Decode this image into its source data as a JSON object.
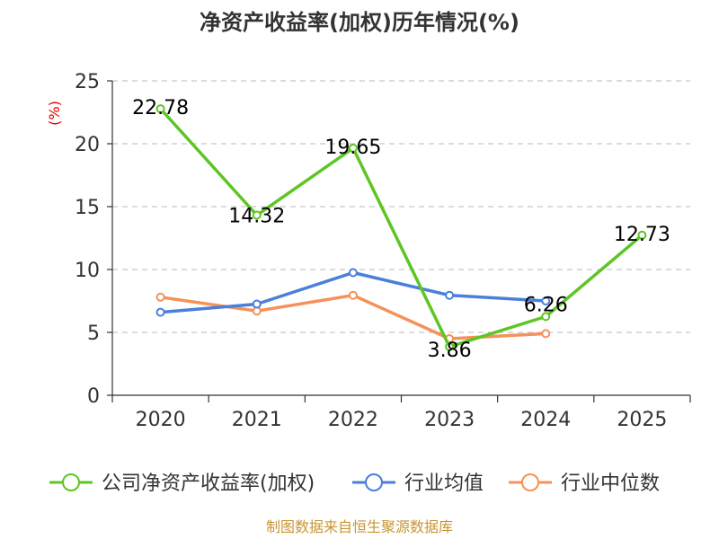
{
  "chart_data": {
    "type": "line",
    "title": "净资产收益率(加权)历年情况(%)",
    "ylabel": "(%)",
    "xlabel": "",
    "categories": [
      "2020",
      "2021",
      "2022",
      "2023",
      "2024",
      "2025"
    ],
    "ylim": [
      0,
      25
    ],
    "yticks": [
      0,
      5,
      10,
      15,
      20,
      25
    ],
    "grid": true,
    "legend_position": "bottom",
    "series": [
      {
        "name": "公司净资产收益率(加权)",
        "color": "#5ec524",
        "values": [
          22.78,
          14.32,
          19.65,
          3.86,
          6.26,
          12.73
        ],
        "labels": [
          "22.78",
          "14.32",
          "19.65",
          "3.86",
          "6.26",
          "12.73"
        ]
      },
      {
        "name": "行业均值",
        "color": "#4a7fda",
        "values": [
          6.6,
          7.25,
          9.75,
          7.95,
          7.5,
          null
        ]
      },
      {
        "name": "行业中位数",
        "color": "#f5915a",
        "values": [
          7.8,
          6.7,
          7.95,
          4.5,
          4.9,
          null
        ]
      }
    ],
    "source": "制图数据来自恒生聚源数据库"
  }
}
